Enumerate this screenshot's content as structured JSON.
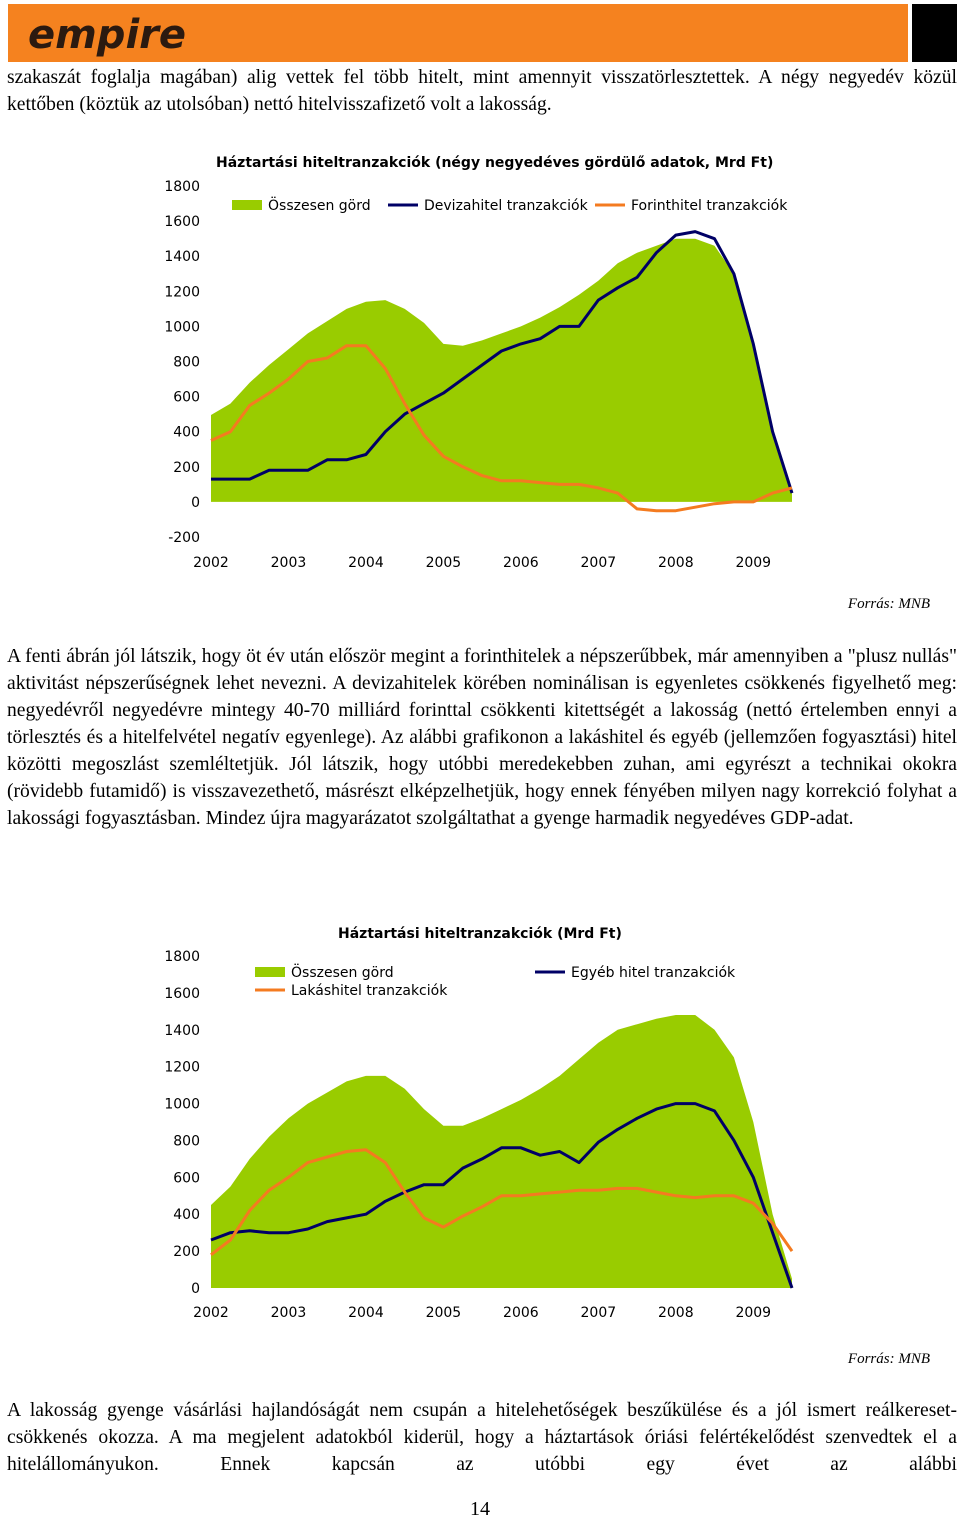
{
  "header": {
    "logo": "empire"
  },
  "paragraphs": [
    "szakaszát foglalja magában) alig vettek fel több hitelt, mint amennyit visszatörlesztettek. A négy negyedév közül kettőben (köztük az utolsóban) nettó hitelvisszafizető volt a lakosság.",
    "A fenti ábrán jól látszik, hogy öt év után először megint a forinthitelek a népszerűbbek, már amennyiben a \"plusz nullás\" aktivitást népszerűségnek lehet nevezni. A devizahitelek körében nominálisan is egyenletes csökkenés figyelhető meg: negyedévről negyedévre mintegy 40-70 milliárd forinttal csökkenti kitettségét a lakosság (nettó értelemben ennyi a törlesztés és a hitelfelvétel negatív egyenlege). Az alábbi grafikonon a lakáshitel és egyéb (jellemzően fogyasztási) hitel közötti megoszlást szemléltetjük. Jól látszik, hogy utóbbi meredekebben zuhan, ami egyrészt a technikai okokra (rövidebb futamidő) is visszavezethető, másrészt elképzelhetjük, hogy ennek fényében milyen nagy korrekció folyhat a lakossági fogyasztásban. Mindez újra magyarázatot szolgáltathat a gyenge harmadik negyedéves GDP-adat.",
    "A lakosság gyenge vásárlási hajlandóságát nem csupán a hitelehetőségek beszűkülése és a jól ismert reálkereset-csökkenés okozza. A ma megjelent adatokból kiderül, hogy a háztartások óriási felértékelődést szenvedtek el a hitelállományukon. Ennek kapcsán az utóbbi egy évet az alábbi"
  ],
  "chart_data": [
    {
      "type": "area-line",
      "title": "Háztartási hiteltranzakciók (négy negyedéves gördülő adatok, Mrd Ft)",
      "source": "Forrás: MNB",
      "x": [
        2002,
        2002.25,
        2002.5,
        2002.75,
        2003,
        2003.25,
        2003.5,
        2003.75,
        2004,
        2004.25,
        2004.5,
        2004.75,
        2005,
        2005.25,
        2005.5,
        2005.75,
        2006,
        2006.25,
        2006.5,
        2006.75,
        2007,
        2007.25,
        2007.5,
        2007.75,
        2008,
        2008.25,
        2008.5,
        2008.75,
        2009,
        2009.25,
        2009.5
      ],
      "xlim": [
        2002,
        2009.5
      ],
      "xticks": [
        2002,
        2003,
        2004,
        2005,
        2006,
        2007,
        2008,
        2009
      ],
      "ylim": [
        -200,
        1800
      ],
      "yticks": [
        -200,
        0,
        200,
        400,
        600,
        800,
        1000,
        1200,
        1400,
        1600,
        1800
      ],
      "series": [
        {
          "name": "Összesen görd",
          "color": "#99cc00",
          "style": "area",
          "values": [
            495,
            560,
            680,
            780,
            870,
            960,
            1030,
            1100,
            1140,
            1150,
            1100,
            1020,
            900,
            890,
            920,
            960,
            1000,
            1050,
            1110,
            1180,
            1260,
            1360,
            1420,
            1460,
            1500,
            1500,
            1460,
            1300,
            900,
            400,
            50
          ]
        },
        {
          "name": "Devizahitel tranzakciók",
          "color": "#000066",
          "style": "line",
          "values": [
            130,
            130,
            130,
            180,
            180,
            180,
            240,
            240,
            270,
            400,
            500,
            560,
            620,
            700,
            780,
            860,
            900,
            930,
            1000,
            1000,
            1150,
            1220,
            1280,
            1420,
            1520,
            1540,
            1500,
            1300,
            900,
            400,
            50
          ]
        },
        {
          "name": "Forinthitel tranzakciók",
          "color": "#f47b20",
          "style": "line",
          "values": [
            350,
            400,
            550,
            620,
            700,
            800,
            820,
            890,
            890,
            760,
            560,
            380,
            260,
            200,
            150,
            120,
            120,
            110,
            100,
            100,
            80,
            50,
            -40,
            -50,
            -50,
            -30,
            -10,
            0,
            0,
            50,
            80
          ]
        }
      ]
    },
    {
      "type": "area-line",
      "title": "Háztartási hiteltranzakciók (Mrd Ft)",
      "source": "Forrás: MNB",
      "x": [
        2002,
        2002.25,
        2002.5,
        2002.75,
        2003,
        2003.25,
        2003.5,
        2003.75,
        2004,
        2004.25,
        2004.5,
        2004.75,
        2005,
        2005.25,
        2005.5,
        2005.75,
        2006,
        2006.25,
        2006.5,
        2006.75,
        2007,
        2007.25,
        2007.5,
        2007.75,
        2008,
        2008.25,
        2008.5,
        2008.75,
        2009,
        2009.25,
        2009.5
      ],
      "xlim": [
        2002,
        2009.5
      ],
      "xticks": [
        2002,
        2003,
        2004,
        2005,
        2006,
        2007,
        2008,
        2009
      ],
      "ylim": [
        0,
        1800
      ],
      "yticks": [
        0,
        200,
        400,
        600,
        800,
        1000,
        1200,
        1400,
        1600,
        1800
      ],
      "series": [
        {
          "name": "Összesen görd",
          "color": "#99cc00",
          "style": "area",
          "values": [
            450,
            550,
            700,
            820,
            920,
            1000,
            1060,
            1120,
            1150,
            1150,
            1080,
            970,
            880,
            880,
            920,
            970,
            1020,
            1080,
            1150,
            1240,
            1330,
            1400,
            1430,
            1460,
            1480,
            1480,
            1400,
            1250,
            900,
            400,
            50
          ]
        },
        {
          "name": "Egyéb hitel tranzakciók",
          "color": "#000066",
          "style": "line",
          "values": [
            260,
            300,
            310,
            300,
            300,
            320,
            360,
            380,
            400,
            470,
            520,
            560,
            560,
            650,
            700,
            760,
            760,
            720,
            740,
            680,
            790,
            860,
            920,
            970,
            1000,
            1000,
            960,
            800,
            600,
            300,
            0
          ]
        },
        {
          "name": "Lakáshitel tranzakciók",
          "color": "#f47b20",
          "style": "line",
          "values": [
            180,
            260,
            420,
            530,
            600,
            680,
            710,
            740,
            750,
            680,
            520,
            380,
            330,
            390,
            440,
            500,
            500,
            510,
            520,
            530,
            530,
            540,
            540,
            520,
            500,
            490,
            500,
            500,
            460,
            350,
            200
          ]
        }
      ]
    }
  ],
  "page_number": "14"
}
